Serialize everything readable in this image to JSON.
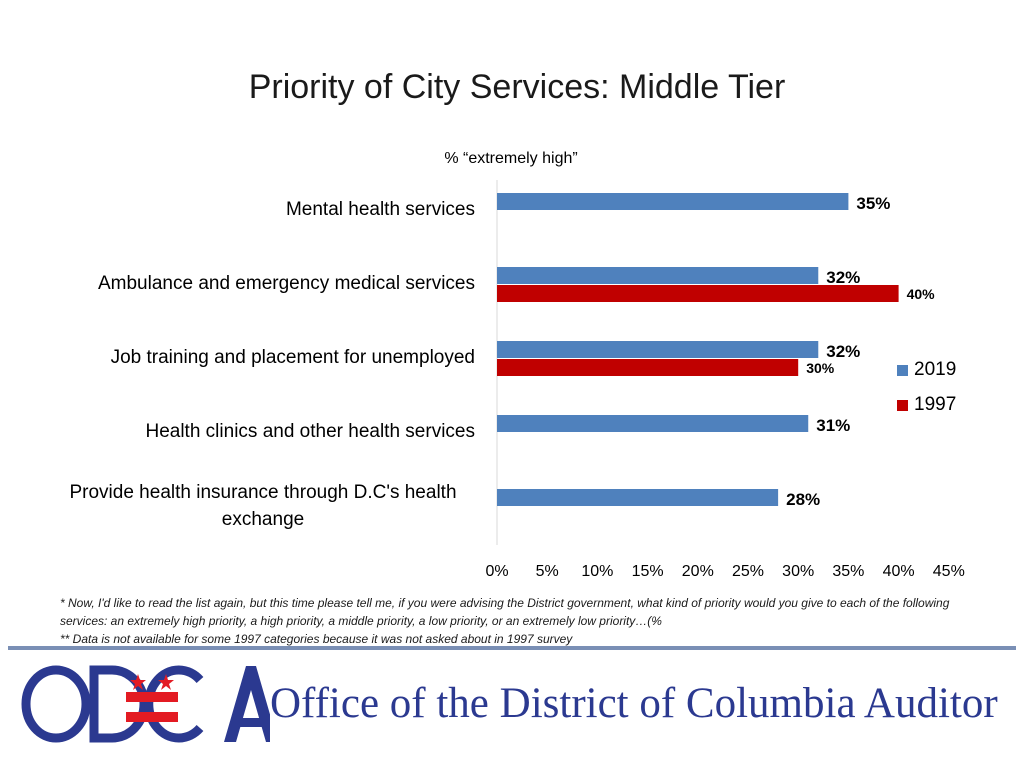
{
  "title": "Priority of City Services: Middle Tier",
  "subtitle": "% “extremely high”",
  "colors": {
    "s2019": "#4f81bd",
    "s1997": "#c00000",
    "axis": "#d9d9d9",
    "brand_blue": "#2b3990",
    "brand_red": "#e31b23"
  },
  "chart_data": {
    "type": "bar",
    "orientation": "horizontal",
    "categories": [
      "Mental health services",
      "Ambulance and emergency medical services",
      "Job training and placement for unemployed",
      "Health clinics and other health services",
      "Provide health insurance through D.C's health exchange"
    ],
    "series": [
      {
        "name": "2019",
        "values": [
          35,
          32,
          32,
          31,
          28
        ],
        "labels": [
          "35%",
          "32%",
          "32%",
          "31%",
          "28%"
        ]
      },
      {
        "name": "1997",
        "values": [
          null,
          40,
          30,
          null,
          null
        ],
        "labels": [
          null,
          "40%",
          "30%",
          null,
          null
        ]
      }
    ],
    "xlim": [
      0,
      45
    ],
    "ticks": [
      "0%",
      "5%",
      "10%",
      "15%",
      "20%",
      "25%",
      "30%",
      "35%",
      "40%",
      "45%"
    ],
    "legend": "right"
  },
  "cat_text": {
    "c0": "Mental health services",
    "c1": "Ambulance and emergency medical services",
    "c2": "Job training and placement for unemployed",
    "c3": "Health clinics and other health services",
    "c4": "Provide health insurance through D.C's health exchange"
  },
  "legend": {
    "s2019": "2019",
    "s1997": "1997"
  },
  "footnotes": {
    "line1": "* Now, I'd like to read the list again, but this time please tell me, if you were advising the District government, what kind of priority would you give to each of the following services: an extremely high priority, a high priority, a middle priority, a low priority, or an extremely low priority…(%",
    "line2": "** Data is not available for some 1997 categories because it was not asked about in 1997 survey"
  },
  "logo": {
    "text": "ODCA",
    "icon": "odca-logo"
  },
  "office_name": "Office of the District of Columbia Auditor"
}
